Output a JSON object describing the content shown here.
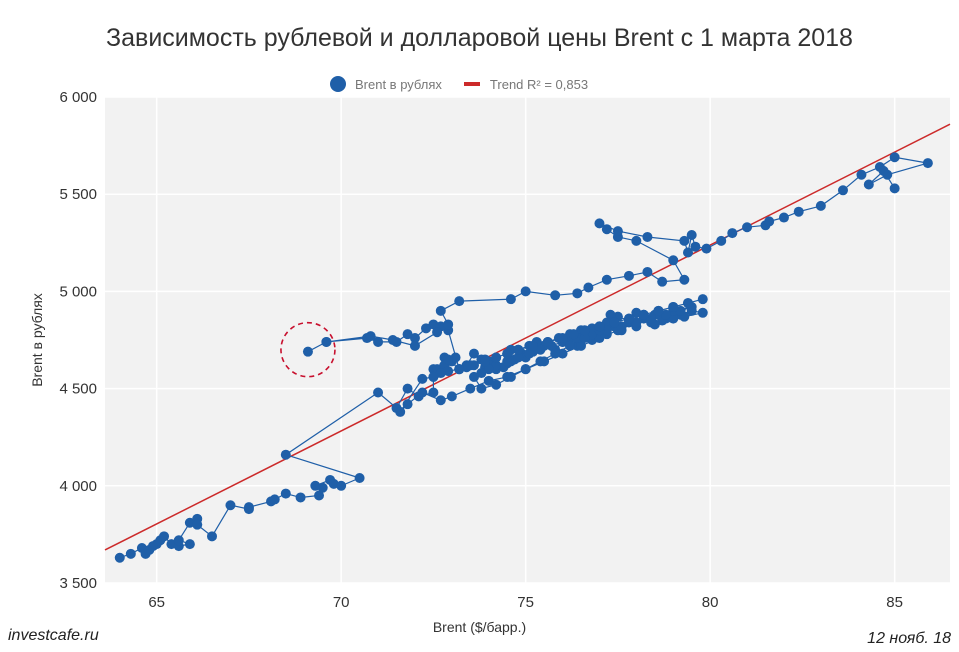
{
  "title": "Зависимость рублевой и долларовой цены Brent с 1 марта 2018",
  "source": "investcafe.ru",
  "date": "12 нояб. 18",
  "colors": {
    "series": "#1f5fa8",
    "trend": "#cc2a2a",
    "highlight": "#c8102e"
  },
  "chart_data": {
    "type": "scatter",
    "title": "Зависимость рублевой и долларовой цены Brent с 1 марта 2018",
    "xlabel": "Brent ($/барр.)",
    "ylabel": "Brent в рублях",
    "xlim": [
      63.6,
      86.5
    ],
    "ylim": [
      3500,
      6000
    ],
    "xticks": [
      65,
      70,
      75,
      80,
      85
    ],
    "yticks": [
      3500,
      4000,
      4500,
      5000,
      5500,
      6000
    ],
    "ytick_labels": [
      "3 500",
      "4 000",
      "4 500",
      "5 000",
      "5 500",
      "6 000"
    ],
    "grid": true,
    "legend_position": "top-center",
    "series": [
      {
        "name": "Brent в рублях",
        "mode": "lines+markers",
        "x": [
          64.0,
          64.3,
          64.6,
          64.8,
          64.7,
          65.0,
          64.9,
          65.1,
          65.2,
          65.4,
          65.6,
          65.9,
          65.6,
          65.9,
          66.1,
          66.1,
          66.5,
          67.0,
          67.5,
          67.5,
          68.1,
          68.2,
          68.5,
          68.9,
          69.4,
          69.5,
          69.3,
          69.7,
          69.8,
          70.0,
          70.5,
          68.5,
          71.0,
          71.5,
          71.8,
          72.1,
          72.5,
          72.5,
          72.8,
          73.0,
          72.6,
          72.6,
          72.8,
          73.1,
          72.8,
          72.9,
          73.2,
          73.4,
          73.6,
          73.8,
          74.0,
          73.9,
          74.2,
          74.5,
          74.6,
          74.7,
          74.4,
          74.6,
          74.9,
          75.0,
          75.2,
          75.5,
          75.8,
          76.0,
          76.2,
          76.4,
          76.6,
          76.8,
          77.0,
          77.2,
          77.4,
          77.6,
          77.8,
          78.0,
          78.2,
          78.4,
          78.6,
          78.8,
          79.0,
          79.2,
          79.5,
          79.8,
          79.3,
          79.0,
          78.7,
          78.5,
          78.2,
          78.0,
          77.8,
          77.5,
          77.3,
          77.2,
          77.0,
          76.8,
          76.5,
          76.2,
          75.9,
          75.6,
          75.3,
          75.1,
          74.8,
          74.5,
          74.2,
          73.9,
          73.6,
          73.4,
          73.2,
          72.9,
          72.7,
          72.5,
          72.2,
          71.6,
          71.8,
          72.2,
          72.7,
          73.0,
          73.5,
          74.0,
          74.5,
          75.0,
          75.5,
          76.0,
          76.5,
          77.0,
          77.5,
          78.0,
          78.5,
          79.0,
          79.5,
          79.2,
          78.8,
          78.4,
          78.0,
          77.6,
          77.2,
          76.8,
          76.4,
          76.0,
          75.7,
          75.4,
          75.1,
          74.8,
          74.5,
          74.2,
          74.0,
          73.8,
          73.6,
          73.8,
          74.2,
          74.6,
          75.0,
          75.4,
          75.8,
          76.2,
          76.6,
          77.0,
          77.4,
          77.8,
          78.2,
          78.6,
          79.0,
          79.4,
          79.8,
          79.4,
          79.0,
          78.6,
          78.2,
          77.8,
          77.4,
          77.0,
          76.6,
          76.3,
          76.0,
          75.6,
          75.2,
          74.8,
          74.5,
          74.2,
          73.9,
          73.5,
          73.2,
          72.9,
          72.7,
          72.5,
          72.3,
          72.0,
          71.8,
          71.5,
          71.0,
          70.7,
          69.6,
          69.1,
          69.6,
          70.8,
          71.4,
          72.0,
          72.6,
          72.9,
          72.7,
          73.2,
          74.6,
          75.0,
          75.8,
          76.4,
          76.7,
          77.2,
          77.8,
          78.3,
          78.7,
          79.3,
          79.0,
          78.0,
          77.5,
          77.2,
          77.0,
          77.5,
          78.3,
          79.3,
          79.4,
          79.5,
          79.6,
          79.9,
          80.3,
          80.6,
          81.0,
          81.5,
          81.6,
          82.0,
          82.4,
          83.0,
          83.6,
          84.1,
          84.6,
          85.0,
          85.9,
          84.8,
          84.3,
          84.7,
          85.0
        ],
        "y": [
          3630,
          3650,
          3680,
          3670,
          3650,
          3700,
          3690,
          3720,
          3740,
          3700,
          3690,
          3700,
          3720,
          3810,
          3830,
          3800,
          3740,
          3900,
          3880,
          3890,
          3920,
          3930,
          3960,
          3940,
          3950,
          3990,
          4000,
          4030,
          4010,
          4000,
          4040,
          4160,
          4480,
          4400,
          4500,
          4460,
          4480,
          4600,
          4620,
          4640,
          4580,
          4600,
          4660,
          4660,
          4620,
          4650,
          4600,
          4620,
          4680,
          4650,
          4640,
          4610,
          4600,
          4630,
          4700,
          4650,
          4610,
          4640,
          4680,
          4660,
          4690,
          4720,
          4700,
          4740,
          4760,
          4720,
          4780,
          4750,
          4800,
          4780,
          4820,
          4800,
          4840,
          4820,
          4860,
          4840,
          4880,
          4860,
          4900,
          4880,
          4900,
          4890,
          4870,
          4860,
          4850,
          4830,
          4870,
          4890,
          4850,
          4870,
          4880,
          4840,
          4820,
          4810,
          4800,
          4780,
          4760,
          4740,
          4740,
          4720,
          4700,
          4680,
          4660,
          4650,
          4620,
          4610,
          4600,
          4590,
          4580,
          4560,
          4550,
          4380,
          4420,
          4480,
          4440,
          4460,
          4500,
          4540,
          4560,
          4600,
          4640,
          4680,
          4720,
          4760,
          4800,
          4840,
          4880,
          4900,
          4920,
          4900,
          4880,
          4860,
          4840,
          4820,
          4800,
          4780,
          4760,
          4740,
          4720,
          4700,
          4680,
          4660,
          4640,
          4620,
          4600,
          4580,
          4560,
          4500,
          4520,
          4560,
          4600,
          4640,
          4680,
          4720,
          4760,
          4800,
          4840,
          4860,
          4880,
          4900,
          4920,
          4940,
          4960,
          4940,
          4920,
          4900,
          4880,
          4860,
          4840,
          4820,
          4800,
          4780,
          4760,
          4740,
          4720,
          4700,
          4680,
          4660,
          4640,
          4620,
          4600,
          4800,
          4820,
          4830,
          4810,
          4760,
          4780,
          4740,
          4740,
          4760,
          4740,
          4690,
          4740,
          4770,
          4750,
          4720,
          4790,
          4830,
          4900,
          4950,
          4960,
          5000,
          4980,
          4990,
          5020,
          5060,
          5080,
          5100,
          5050,
          5060,
          5160,
          5260,
          5280,
          5320,
          5350,
          5310,
          5280,
          5260,
          5200,
          5290,
          5230,
          5220,
          5260,
          5300,
          5330,
          5340,
          5360,
          5380,
          5410,
          5440,
          5520,
          5600,
          5640,
          5690,
          5660,
          5600,
          5550,
          5620,
          5530
        ]
      },
      {
        "name": "Trend R² = 0,853",
        "mode": "line",
        "x": [
          63.6,
          86.5
        ],
        "y": [
          3670,
          5860
        ]
      }
    ],
    "annotations": [
      {
        "type": "dashed-circle",
        "x": 69.1,
        "y": 4690
      }
    ]
  }
}
